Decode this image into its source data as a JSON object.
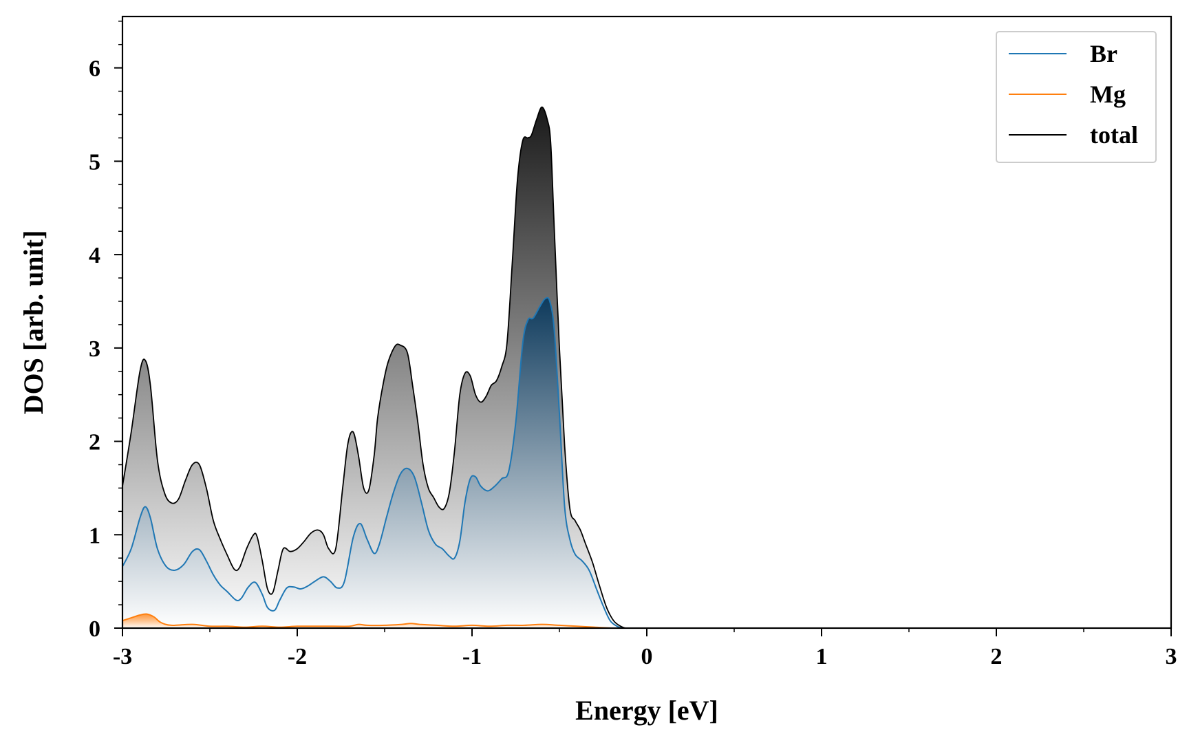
{
  "chart_data": {
    "type": "area",
    "title": "",
    "xlabel": "Energy [eV]",
    "ylabel": "DOS [arb. unit]",
    "xlim": [
      -3,
      3
    ],
    "ylim": [
      0,
      6.55
    ],
    "xticks": [
      -3,
      -2,
      -1,
      0,
      1,
      2,
      3
    ],
    "xtick_labels": [
      "-3",
      "-2",
      "-1",
      "0",
      "1",
      "2",
      "3"
    ],
    "yticks": [
      0,
      1,
      2,
      3,
      4,
      5,
      6
    ],
    "ytick_labels": [
      "0",
      "1",
      "2",
      "3",
      "4",
      "5",
      "6"
    ],
    "grid": false,
    "legend_position": "top-right",
    "series": [
      {
        "name": "Br",
        "color": "#1f77b4",
        "fill": "blue-gradient",
        "x": [
          -3.0,
          -2.95,
          -2.9,
          -2.87,
          -2.84,
          -2.8,
          -2.75,
          -2.7,
          -2.65,
          -2.6,
          -2.56,
          -2.52,
          -2.48,
          -2.44,
          -2.4,
          -2.35,
          -2.32,
          -2.28,
          -2.24,
          -2.2,
          -2.17,
          -2.13,
          -2.1,
          -2.06,
          -2.02,
          -1.98,
          -1.94,
          -1.9,
          -1.85,
          -1.81,
          -1.77,
          -1.73,
          -1.68,
          -1.64,
          -1.6,
          -1.56,
          -1.53,
          -1.49,
          -1.45,
          -1.41,
          -1.37,
          -1.33,
          -1.29,
          -1.25,
          -1.21,
          -1.17,
          -1.13,
          -1.1,
          -1.07,
          -1.04,
          -1.01,
          -0.98,
          -0.95,
          -0.91,
          -0.87,
          -0.83,
          -0.79,
          -0.75,
          -0.71,
          -0.68,
          -0.65,
          -0.61,
          -0.58,
          -0.555,
          -0.53,
          -0.5,
          -0.47,
          -0.44,
          -0.41,
          -0.37,
          -0.33,
          -0.29,
          -0.25,
          -0.21,
          -0.17,
          -0.14,
          -0.1,
          -0.05,
          0.0,
          0.5,
          1.0,
          1.5,
          2.0,
          2.5,
          3.0
        ],
        "values": [
          0.66,
          0.85,
          1.18,
          1.3,
          1.18,
          0.85,
          0.66,
          0.62,
          0.68,
          0.82,
          0.84,
          0.72,
          0.57,
          0.46,
          0.39,
          0.3,
          0.32,
          0.44,
          0.49,
          0.36,
          0.22,
          0.19,
          0.3,
          0.43,
          0.44,
          0.42,
          0.45,
          0.5,
          0.55,
          0.5,
          0.43,
          0.5,
          0.97,
          1.12,
          0.95,
          0.8,
          0.9,
          1.18,
          1.45,
          1.65,
          1.71,
          1.62,
          1.35,
          1.05,
          0.9,
          0.85,
          0.77,
          0.75,
          0.93,
          1.35,
          1.6,
          1.62,
          1.52,
          1.47,
          1.52,
          1.6,
          1.68,
          2.2,
          3.05,
          3.3,
          3.32,
          3.45,
          3.53,
          3.5,
          3.2,
          2.3,
          1.3,
          0.95,
          0.79,
          0.72,
          0.62,
          0.43,
          0.24,
          0.08,
          0.02,
          0.0,
          0.0,
          0.0,
          0.0,
          0.0,
          0.0,
          0.0,
          0.0,
          0.0,
          0.0
        ]
      },
      {
        "name": "Mg",
        "color": "#ff7f0e",
        "fill": "orange-gradient",
        "x": [
          -3.0,
          -2.95,
          -2.9,
          -2.86,
          -2.82,
          -2.78,
          -2.72,
          -2.6,
          -2.5,
          -2.4,
          -2.3,
          -2.2,
          -2.1,
          -2.0,
          -1.9,
          -1.8,
          -1.7,
          -1.65,
          -1.6,
          -1.5,
          -1.4,
          -1.35,
          -1.3,
          -1.2,
          -1.1,
          -1.0,
          -0.9,
          -0.8,
          -0.7,
          -0.6,
          -0.5,
          -0.4,
          -0.3,
          -0.2,
          -0.15,
          0.0,
          3.0
        ],
        "values": [
          0.08,
          0.11,
          0.14,
          0.15,
          0.12,
          0.06,
          0.03,
          0.04,
          0.02,
          0.02,
          0.01,
          0.02,
          0.01,
          0.02,
          0.02,
          0.02,
          0.02,
          0.04,
          0.03,
          0.03,
          0.04,
          0.05,
          0.04,
          0.03,
          0.02,
          0.03,
          0.02,
          0.03,
          0.03,
          0.04,
          0.03,
          0.02,
          0.01,
          0.0,
          0.0,
          0.0,
          0.0
        ]
      },
      {
        "name": "total",
        "color": "#000000",
        "fill": "gray-gradient",
        "x": [
          -3.0,
          -2.95,
          -2.9,
          -2.87,
          -2.84,
          -2.8,
          -2.76,
          -2.72,
          -2.68,
          -2.64,
          -2.6,
          -2.56,
          -2.52,
          -2.48,
          -2.44,
          -2.4,
          -2.36,
          -2.33,
          -2.29,
          -2.25,
          -2.23,
          -2.2,
          -2.17,
          -2.14,
          -2.11,
          -2.08,
          -2.04,
          -2.0,
          -1.96,
          -1.92,
          -1.88,
          -1.85,
          -1.82,
          -1.78,
          -1.74,
          -1.71,
          -1.68,
          -1.65,
          -1.62,
          -1.59,
          -1.56,
          -1.54,
          -1.51,
          -1.48,
          -1.44,
          -1.41,
          -1.37,
          -1.34,
          -1.31,
          -1.28,
          -1.25,
          -1.22,
          -1.19,
          -1.16,
          -1.13,
          -1.1,
          -1.07,
          -1.04,
          -1.01,
          -0.98,
          -0.95,
          -0.92,
          -0.89,
          -0.86,
          -0.83,
          -0.8,
          -0.77,
          -0.74,
          -0.71,
          -0.68,
          -0.66,
          -0.63,
          -0.6,
          -0.57,
          -0.55,
          -0.53,
          -0.5,
          -0.47,
          -0.44,
          -0.41,
          -0.38,
          -0.35,
          -0.31,
          -0.27,
          -0.23,
          -0.19,
          -0.15,
          -0.12,
          -0.09,
          -0.05,
          0.0,
          0.5,
          1.0,
          1.5,
          2.0,
          2.5,
          3.0
        ],
        "values": [
          1.52,
          2.1,
          2.75,
          2.87,
          2.6,
          1.8,
          1.45,
          1.34,
          1.38,
          1.58,
          1.75,
          1.75,
          1.5,
          1.15,
          0.95,
          0.78,
          0.63,
          0.65,
          0.85,
          1.0,
          0.98,
          0.72,
          0.42,
          0.38,
          0.62,
          0.85,
          0.82,
          0.85,
          0.93,
          1.02,
          1.05,
          1.0,
          0.85,
          0.85,
          1.5,
          1.98,
          2.1,
          1.85,
          1.5,
          1.48,
          1.85,
          2.25,
          2.6,
          2.85,
          3.02,
          3.03,
          2.95,
          2.6,
          2.2,
          1.75,
          1.5,
          1.4,
          1.3,
          1.28,
          1.45,
          1.9,
          2.5,
          2.73,
          2.7,
          2.5,
          2.42,
          2.48,
          2.6,
          2.65,
          2.8,
          3.05,
          3.9,
          4.8,
          5.22,
          5.25,
          5.28,
          5.45,
          5.58,
          5.45,
          5.2,
          4.3,
          3.0,
          1.95,
          1.28,
          1.15,
          1.05,
          0.9,
          0.7,
          0.45,
          0.22,
          0.08,
          0.02,
          0.0,
          0.0,
          0.0,
          0.0,
          0.0,
          0.0,
          0.0,
          0.0,
          0.0,
          0.0
        ]
      }
    ]
  }
}
